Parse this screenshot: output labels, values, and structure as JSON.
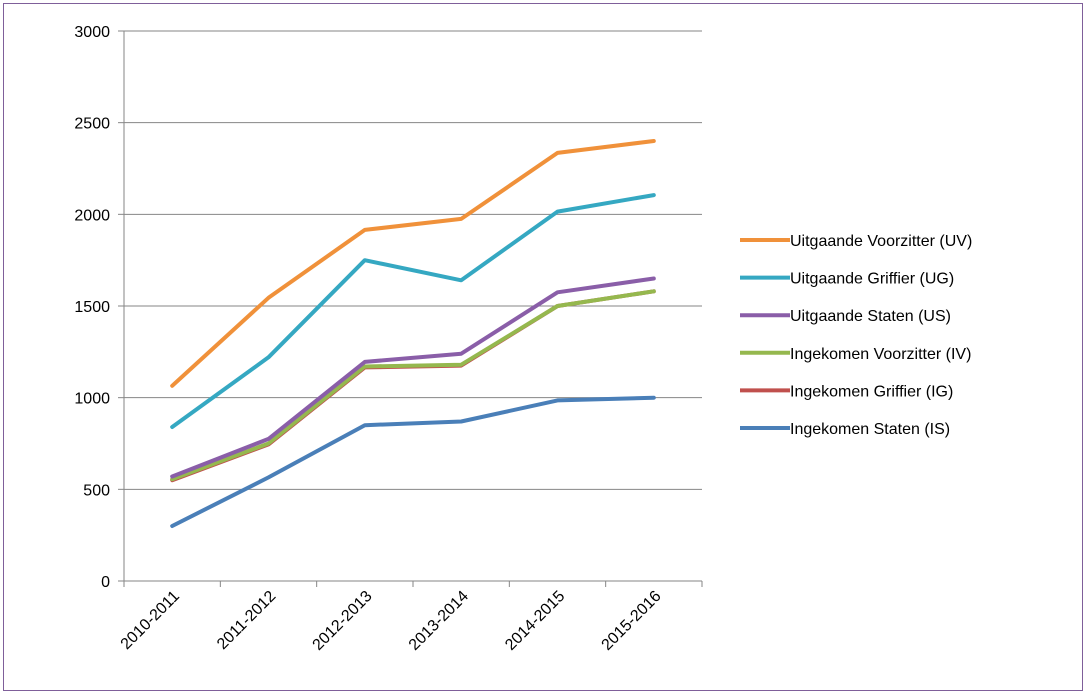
{
  "chart_data": {
    "type": "line",
    "categories": [
      "2010-2011",
      "2011-2012",
      "2012-2013",
      "2013-2014",
      "2014-2015",
      "2015-2016"
    ],
    "ylim": [
      0,
      3000
    ],
    "yticks": [
      0,
      500,
      1000,
      1500,
      2000,
      2500,
      3000
    ],
    "grid": "horizontal",
    "legend_position": "right",
    "series": [
      {
        "name": "Uitgaande Voorzitter (UV)",
        "color": "#f0913a",
        "values": [
          1065,
          1545,
          1915,
          1975,
          2335,
          2400
        ]
      },
      {
        "name": "Uitgaande Griffier (UG)",
        "color": "#35a8c2",
        "values": [
          840,
          1220,
          1750,
          1640,
          2015,
          2105
        ]
      },
      {
        "name": "Uitgaande Staten (US)",
        "color": "#8a5ea8",
        "values": [
          570,
          775,
          1195,
          1240,
          1575,
          1650
        ]
      },
      {
        "name": "Ingekomen Voorzitter (IV)",
        "color": "#95b84e",
        "values": [
          555,
          750,
          1170,
          1180,
          1500,
          1580
        ]
      },
      {
        "name": "Ingekomen Griffier (IG)",
        "color": "#c0504d",
        "values": [
          550,
          745,
          1165,
          1175,
          1500,
          1580
        ]
      },
      {
        "name": "Ingekomen Staten (IS)",
        "color": "#4a7fb8",
        "values": [
          300,
          565,
          850,
          870,
          985,
          1000
        ]
      }
    ]
  }
}
